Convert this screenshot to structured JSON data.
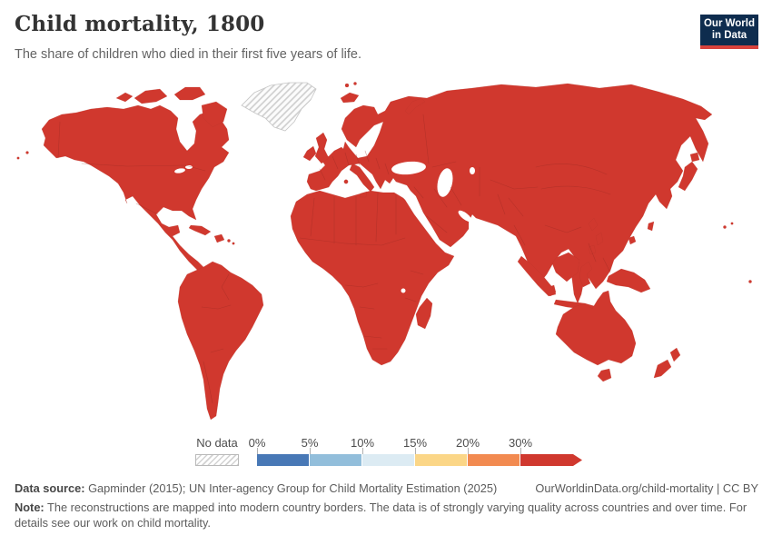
{
  "header": {
    "title": "Child mortality, 1800",
    "subtitle": "The share of children who died in their first five years of life."
  },
  "logo": {
    "line1": "Our World",
    "line2": "in Data",
    "bg_color": "#0e2c4e",
    "accent_color": "#d8423c"
  },
  "map": {
    "fill_color": "#d0382e",
    "no_data_pattern": "diagonal-hatch"
  },
  "legend": {
    "no_data_label": "No data",
    "ticks": [
      "0%",
      "5%",
      "10%",
      "15%",
      "20%",
      "30%"
    ],
    "bins": [
      {
        "range": "0–5%",
        "color": "#4878b6"
      },
      {
        "range": "5–10%",
        "color": "#92bedb"
      },
      {
        "range": "10–15%",
        "color": "#dcebf3"
      },
      {
        "range": "15–20%",
        "color": "#fbd687"
      },
      {
        "range": "20–30%",
        "color": "#f28a50"
      },
      {
        "range": "30%+",
        "color": "#d0382e"
      }
    ]
  },
  "footer": {
    "datasource_label": "Data source:",
    "datasource_text": " Gapminder (2015); UN Inter-agency Group for Child Mortality Estimation (2025)",
    "rights": "OurWorldinData.org/child-mortality | CC BY",
    "note_label": "Note:",
    "note_text": " The reconstructions are mapped into modern country borders. The data is of strongly varying quality across countries and over time. For details see our work on child mortality."
  },
  "chart_data": {
    "type": "heatmap",
    "subtype": "world_choropleth",
    "title": "Child mortality, 1800",
    "unit": "share of children dying before age 5 (%)",
    "legend_tick_labels": [
      "0%",
      "5%",
      "10%",
      "15%",
      "20%",
      "30%"
    ],
    "bins": [
      {
        "range": "0–5%",
        "color": "#4878b6"
      },
      {
        "range": "5–10%",
        "color": "#92bedb"
      },
      {
        "range": "10–15%",
        "color": "#dcebf3"
      },
      {
        "range": "15–20%",
        "color": "#fbd687"
      },
      {
        "range": "20–30%",
        "color": "#f28a50"
      },
      {
        "range": "30%+",
        "color": "#d0382e"
      }
    ],
    "no_data_label": "No data",
    "regions": [
      {
        "name": "North America",
        "bin": "30%+"
      },
      {
        "name": "South America",
        "bin": "30%+"
      },
      {
        "name": "Europe",
        "bin": "30%+"
      },
      {
        "name": "Africa",
        "bin": "30%+"
      },
      {
        "name": "Asia",
        "bin": "30%+"
      },
      {
        "name": "Oceania",
        "bin": "30%+"
      },
      {
        "name": "Greenland",
        "bin": "No data"
      }
    ],
    "observation": "Every country shown falls in the highest (30%+) bin; Greenland is shown as no data."
  }
}
